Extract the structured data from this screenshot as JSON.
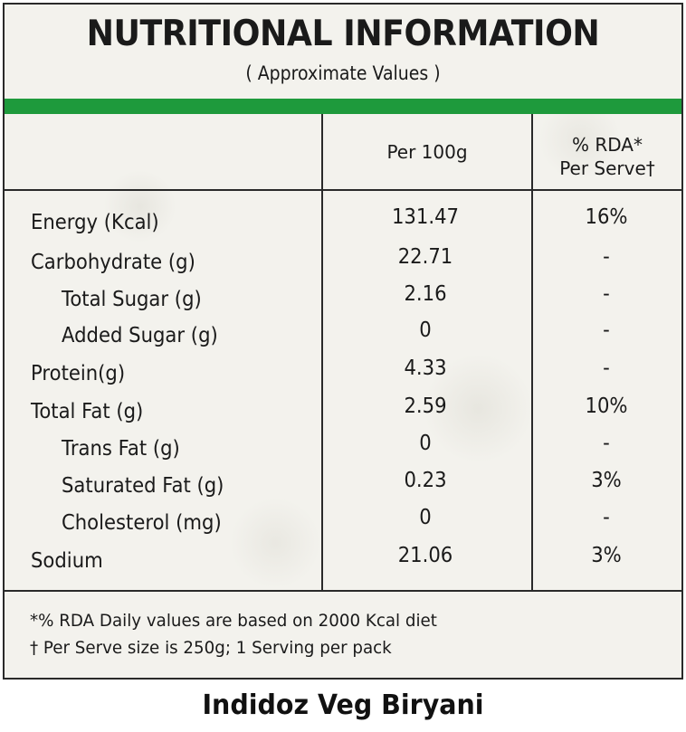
{
  "header": {
    "title": "NUTRITIONAL INFORMATION",
    "subtitle": "( Approximate Values )"
  },
  "columns": {
    "per100": "Per 100g",
    "rda_line1": "% RDA*",
    "rda_line2": "Per Serve†"
  },
  "rows": [
    {
      "name": "Energy (Kcal)",
      "value": "131.47",
      "rda": "16%"
    },
    {
      "name": "Carbohydrate (g)",
      "value": "22.71",
      "rda": "-"
    },
    {
      "name": "Total Sugar (g)",
      "value": "2.16",
      "rda": "-"
    },
    {
      "name": "Added Sugar (g)",
      "value": "0",
      "rda": "-"
    },
    {
      "name": "Protein(g)",
      "value": "4.33",
      "rda": "-"
    },
    {
      "name": "Total Fat (g)",
      "value": "2.59",
      "rda": "10%"
    },
    {
      "name": "Trans Fat (g)",
      "value": "0",
      "rda": "-"
    },
    {
      "name": "Saturated Fat (g)",
      "value": "0.23",
      "rda": "3%"
    },
    {
      "name": "Cholesterol (mg)",
      "value": "0",
      "rda": "-"
    },
    {
      "name": "Sodium",
      "value": "21.06",
      "rda": "3%"
    }
  ],
  "footnotes": {
    "line1": "*% RDA Daily values are based on 2000 Kcal diet",
    "line2": "† Per Serve size is 250g; 1 Serving per pack"
  },
  "caption": "Indidoz Veg Biryani",
  "colors": {
    "accent_green": "#1e9a3c",
    "border": "#2a2a2a",
    "background": "#f3f2ed"
  }
}
